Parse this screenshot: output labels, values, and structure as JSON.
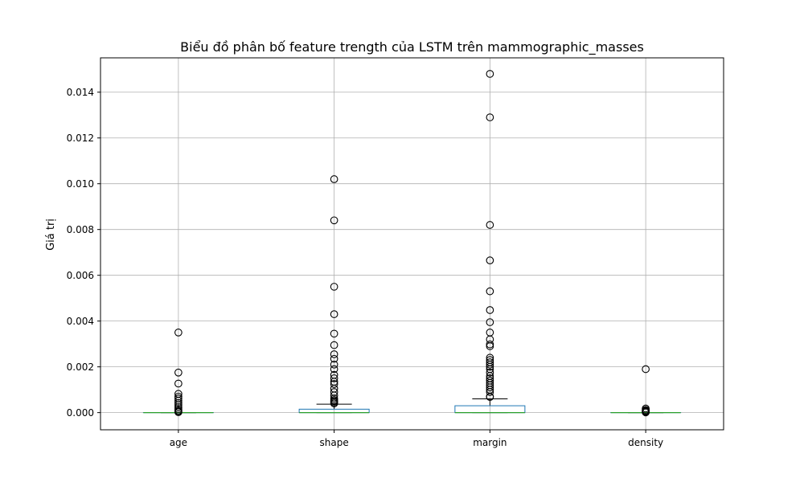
{
  "chart_data": {
    "type": "box",
    "title": "Biểu đồ phân bố feature trength của LSTM trên mammographic_masses",
    "xlabel": "",
    "ylabel": "Giá trị",
    "ylim": [
      -0.00075,
      0.0155
    ],
    "yticks": [
      0.0,
      0.002,
      0.004,
      0.006,
      0.008,
      0.01,
      0.012,
      0.014
    ],
    "ytick_labels": [
      "0.000",
      "0.002",
      "0.004",
      "0.006",
      "0.008",
      "0.010",
      "0.012",
      "0.014"
    ],
    "grid": true,
    "categories": [
      "age",
      "shape",
      "margin",
      "density"
    ],
    "boxes": [
      {
        "name": "age",
        "q1": 0.0,
        "median": 0.0,
        "q3": 0.0,
        "whisker_low": 0.0,
        "whisker_high": 0.0,
        "outliers": [
          0.0035,
          0.00175,
          0.00127,
          0.00082,
          0.0007,
          0.00062,
          0.00052,
          0.00042,
          0.00033,
          0.00024,
          0.00016,
          9e-05,
          5e-05,
          2e-05
        ]
      },
      {
        "name": "shape",
        "q1": 0.0,
        "median": 0.0,
        "q3": 0.00015,
        "whisker_low": 0.0,
        "whisker_high": 0.00037,
        "outliers": [
          0.0102,
          0.0084,
          0.0055,
          0.0043,
          0.00345,
          0.00295,
          0.00255,
          0.00235,
          0.0021,
          0.0019,
          0.00165,
          0.0015,
          0.00135,
          0.00125,
          0.00105,
          0.0009,
          0.00075,
          0.00062,
          0.00055,
          0.0005,
          0.00045,
          0.0004
        ]
      },
      {
        "name": "margin",
        "q1": 0.0,
        "median": 0.0,
        "q3": 0.0003,
        "whisker_low": 0.0,
        "whisker_high": 0.0006,
        "outliers": [
          0.0148,
          0.0129,
          0.0082,
          0.00665,
          0.0053,
          0.00448,
          0.00395,
          0.0035,
          0.0032,
          0.00298,
          0.0029,
          0.0024,
          0.0023,
          0.0022,
          0.0021,
          0.002,
          0.0019,
          0.00175,
          0.0016,
          0.0015,
          0.0014,
          0.0013,
          0.0012,
          0.0011,
          0.001,
          0.0009,
          0.0007,
          0.00068
        ]
      },
      {
        "name": "density",
        "q1": 0.0,
        "median": 0.0,
        "q3": 0.0,
        "whisker_low": 0.0,
        "whisker_high": 0.0,
        "outliers": [
          0.0019,
          0.00018,
          0.00012,
          8e-05,
          5e-05,
          3e-05,
          1e-05
        ]
      }
    ],
    "colors": {
      "box": "#1f77b4",
      "median": "#2ca02c",
      "whisker": "#000000",
      "flier": "#000000",
      "grid": "#b0b0b0"
    }
  }
}
